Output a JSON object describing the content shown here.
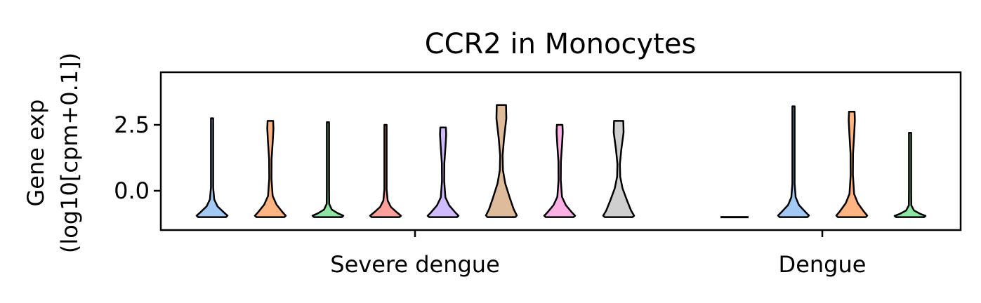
{
  "chart_data": {
    "type": "violin",
    "title": "CCR2 in Monocytes",
    "ylabel_line1": "Gene exp",
    "ylabel_line2": "(log10[cpm+0.1])",
    "xlabel": "",
    "ylim": [
      -1.5,
      4.5
    ],
    "yticks": [
      {
        "value": 2.5,
        "label": "2.5"
      },
      {
        "value": 0.0,
        "label": "0.0"
      }
    ],
    "groups": [
      {
        "label": "Severe dengue",
        "violins": [
          {
            "color": "#a1c9f4",
            "min": -1.0,
            "max": 2.75,
            "shape": "bottom"
          },
          {
            "color": "#ffb482",
            "min": -1.0,
            "max": 2.65,
            "shape": "bottom-top"
          },
          {
            "color": "#8de5a1",
            "min": -1.0,
            "max": 2.6,
            "shape": "flat"
          },
          {
            "color": "#ff9f9b",
            "min": -1.0,
            "max": 2.5,
            "shape": "bottom"
          },
          {
            "color": "#d0bbff",
            "min": -1.0,
            "max": 2.4,
            "shape": "bottom-top"
          },
          {
            "color": "#debb9b",
            "min": -1.0,
            "max": 3.25,
            "shape": "tall"
          },
          {
            "color": "#fab0e4",
            "min": -1.0,
            "max": 2.5,
            "shape": "bottom-top"
          },
          {
            "color": "#cfcfcf",
            "min": -1.0,
            "max": 2.65,
            "shape": "tall"
          }
        ]
      },
      {
        "label": "Dengue",
        "violins": [
          {
            "color": "#a1c9f4",
            "min": -1.0,
            "max": -1.0,
            "shape": "line"
          },
          {
            "color": "#a1c9f4",
            "min": -1.0,
            "max": 3.2,
            "shape": "bottom"
          },
          {
            "color": "#ffb482",
            "min": -1.0,
            "max": 3.0,
            "shape": "bottom-top"
          },
          {
            "color": "#8de5a1",
            "min": -1.0,
            "max": 2.2,
            "shape": "flat"
          }
        ]
      }
    ]
  }
}
